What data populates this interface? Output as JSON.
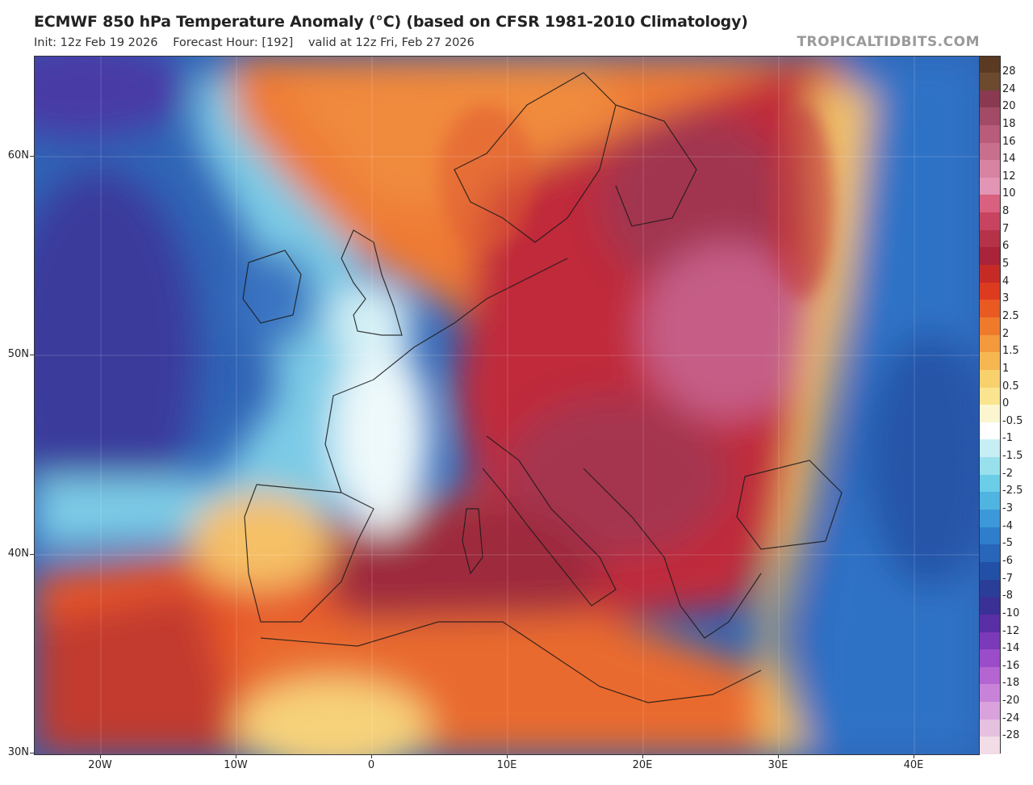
{
  "header": {
    "title": "ECMWF 850 hPa Temperature Anomaly (°C) (based on CFSR 1981-2010 Climatology)",
    "init": "Init: 12z Feb 19 2026",
    "forecast_hour": "Forecast Hour: [192]",
    "valid": "valid at 12z Fri, Feb 27 2026",
    "brand": "TROPICALTIDBITS.COM"
  },
  "axes": {
    "lat_labels": [
      "60N",
      "50N",
      "40N",
      "30N"
    ],
    "lon_labels": [
      "20W",
      "10W",
      "0",
      "10E",
      "20E",
      "30E",
      "40E"
    ]
  },
  "colorbar": {
    "labels": [
      "28",
      "24",
      "20",
      "18",
      "16",
      "14",
      "12",
      "10",
      "8",
      "7",
      "6",
      "5",
      "4",
      "3",
      "2.5",
      "2",
      "1.5",
      "1",
      "0.5",
      "0",
      "-0.5",
      "-1",
      "-1.5",
      "-2",
      "-2.5",
      "-3",
      "-4",
      "-5",
      "-6",
      "-7",
      "-8",
      "-10",
      "-12",
      "-14",
      "-16",
      "-18",
      "-20",
      "-24",
      "-28"
    ],
    "colors": [
      "#6b4a2e",
      "#8a3a50",
      "#a34a66",
      "#b85c7a",
      "#c96f8e",
      "#d783a2",
      "#e295b4",
      "#d9607e",
      "#c8435f",
      "#b53249",
      "#a9233a",
      "#c62a25",
      "#dc3b1f",
      "#e85a22",
      "#ef7a2c",
      "#f39a3c",
      "#f6b752",
      "#f8d06c",
      "#fae48f",
      "#fbf6cf",
      "#ffffff",
      "#c7eef3",
      "#98e0ec",
      "#6bcde6",
      "#4fb4e0",
      "#3c98d8",
      "#2f7ecb",
      "#2766b8",
      "#2250a6",
      "#2a3e98",
      "#3a3095",
      "#5a2ea4",
      "#7b3ab8",
      "#9b4cc8",
      "#b565d2",
      "#c883d8",
      "#d9a2dc",
      "#e6c0df",
      "#f2dce6"
    ]
  }
}
